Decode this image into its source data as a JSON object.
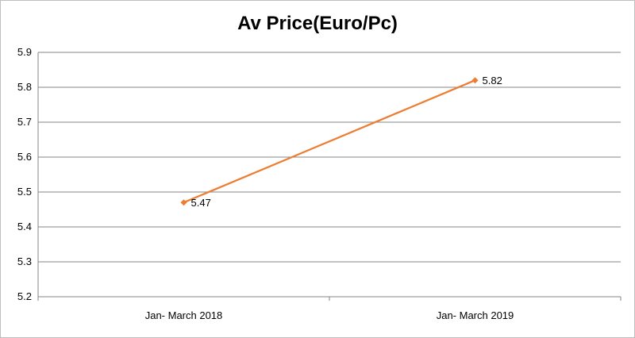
{
  "chart_data": {
    "type": "line",
    "title": "Av Price(Euro/Pc)",
    "xlabel": "",
    "ylabel": "",
    "categories": [
      "Jan- March 2018",
      "Jan- March 2019"
    ],
    "series": [
      {
        "values": [
          5.47,
          5.82
        ],
        "data_labels": [
          "5.47",
          "5.82"
        ]
      }
    ],
    "ylim": [
      5.2,
      5.9
    ],
    "yticks": [
      "5.9",
      "5.8",
      "5.7",
      "5.6",
      "5.5",
      "5.4",
      "5.3",
      "5.2"
    ],
    "grid": true,
    "legend": "none",
    "colors": {
      "series": "#ed7d31",
      "grid": "#868686",
      "border": "#bfbfbf"
    }
  }
}
